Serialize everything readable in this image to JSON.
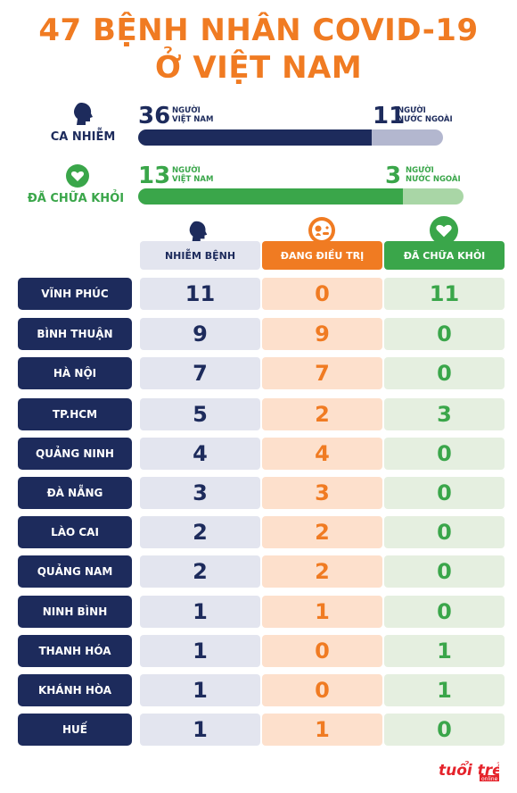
{
  "title": {
    "line1": "47 BỆNH NHÂN COVID-19",
    "line2": "Ở VIỆT NAM"
  },
  "summary": {
    "infected": {
      "label": "CA NHIỄM",
      "icon": "person-head-icon",
      "domestic": {
        "value": "36",
        "label1": "NGƯỜI",
        "label2": "VIỆT NAM"
      },
      "foreign": {
        "value": "11",
        "label1": "NGƯỜI",
        "label2": "NƯỚC NGOÀI"
      },
      "domestic_fraction": 0.766,
      "colors": {
        "domestic": "#1d2b5c",
        "foreign": "#b3b7cf"
      }
    },
    "recovered": {
      "label": "ĐÃ CHỮA KHỎI",
      "icon": "heart-icon",
      "domestic": {
        "value": "13",
        "label1": "NGƯỜI",
        "label2": "VIỆT NAM"
      },
      "foreign": {
        "value": "3",
        "label1": "NGƯỜI",
        "label2": "NƯỚC NGOÀI"
      },
      "domestic_fraction": 0.8125,
      "colors": {
        "domestic": "#3aa64a",
        "foreign": "#a9d6a6"
      }
    }
  },
  "columns": [
    {
      "label": "NHIỄM BỆNH",
      "icon": "person-head-icon",
      "color": "#e3e5ef"
    },
    {
      "label": "ĐANG ĐIỀU TRỊ",
      "icon": "treatment-icon",
      "color": "#f07b22"
    },
    {
      "label": "ĐÃ CHỮA KHỎI",
      "icon": "heart-icon",
      "color": "#3aa64a"
    }
  ],
  "rows": [
    {
      "province": "VĨNH PHÚC",
      "infected": "11",
      "treating": "0",
      "recovered": "11"
    },
    {
      "province": "BÌNH THUẬN",
      "infected": "9",
      "treating": "9",
      "recovered": "0"
    },
    {
      "province": "HÀ NỘI",
      "infected": "7",
      "treating": "7",
      "recovered": "0"
    },
    {
      "province": "TP.HCM",
      "infected": "5",
      "treating": "2",
      "recovered": "3"
    },
    {
      "province": "QUẢNG NINH",
      "infected": "4",
      "treating": "4",
      "recovered": "0"
    },
    {
      "province": "ĐÀ NẴNG",
      "infected": "3",
      "treating": "3",
      "recovered": "0"
    },
    {
      "province": "LÀO CAI",
      "infected": "2",
      "treating": "2",
      "recovered": "0"
    },
    {
      "province": "QUẢNG NAM",
      "infected": "2",
      "treating": "2",
      "recovered": "0"
    },
    {
      "province": "NINH BÌNH",
      "infected": "1",
      "treating": "1",
      "recovered": "0"
    },
    {
      "province": "THANH HÓA",
      "infected": "1",
      "treating": "0",
      "recovered": "1"
    },
    {
      "province": "KHÁNH HÒA",
      "infected": "1",
      "treating": "0",
      "recovered": "1"
    },
    {
      "province": "HUẾ",
      "infected": "1",
      "treating": "1",
      "recovered": "0"
    }
  ],
  "logo": {
    "text": "tuổi trẻ",
    "sub": "online",
    "icon": "tuoitre-logo"
  }
}
